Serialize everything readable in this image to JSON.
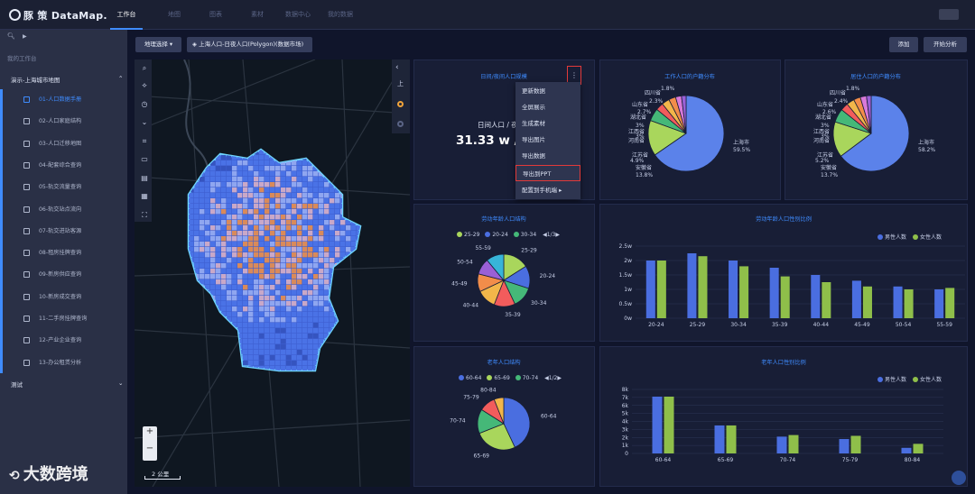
{
  "app": {
    "logo": "豚 策 DataMap."
  },
  "topnav": [
    {
      "label": "工作台",
      "active": true
    },
    {
      "label": "地图"
    },
    {
      "label": "图表"
    },
    {
      "label": "素材"
    },
    {
      "label": "数据中心"
    },
    {
      "label": "我的数据"
    }
  ],
  "sidebar": {
    "workspace_label": "我的工作台",
    "group1": "演示-上海城市地图",
    "items": [
      "01-人口数据手册",
      "02-人口家庭结构",
      "03-人口迁移地图",
      "04-配套综合查询",
      "05-轨交流量查询",
      "06-轨交站点流向",
      "07-轨交进站客源",
      "08-租房挂牌查询",
      "09-新房供应查询",
      "10-新房成交查询",
      "11-二手房挂牌查询",
      "12-产业企业查询",
      "13-办公租赁分析"
    ],
    "group2": "测试"
  },
  "toolbar": {
    "geo_select": "地理选择",
    "layer": "上海人口-日夜人口(Polygon)(数据市场)",
    "add": "添加",
    "analyze": "开始分析"
  },
  "map": {
    "scale": "2 公里",
    "zoom_in": "+",
    "zoom_out": "−",
    "side_label": "上"
  },
  "kpi": {
    "title": "日间/夜间人口规模",
    "label": "日间人口 / 夜",
    "value": "31.33 w / 3",
    "more": "⋮"
  },
  "menu": [
    "更新数据",
    "全屏展示",
    "生成素材",
    "导出图片",
    "导出数据",
    "导出到PPT",
    "配置到手机端 ▸"
  ],
  "charts": {
    "work": {
      "title": "工作人口的户籍分布",
      "labels": [
        "上海市",
        "59.5%",
        "安徽省",
        "13.8%",
        "江苏省",
        "4.9%",
        "河南省",
        "江西省",
        "湖北省",
        "山东省",
        "四川省",
        "1.8%",
        "2.3%",
        "2.7%",
        "3%",
        "3%"
      ]
    },
    "live": {
      "title": "居住人口的户籍分布",
      "labels": [
        "上海市",
        "58.2%",
        "安徽省",
        "13.7%",
        "江苏省",
        "5.2%",
        "河南省",
        "江西省",
        "湖北省",
        "山东省",
        "四川省",
        "1.8%",
        "2.4%",
        "2.6%",
        "3%",
        "3%"
      ]
    },
    "labor_age": {
      "title": "劳动年龄人口结构",
      "legend": [
        "25-29",
        "20-24",
        "30-34"
      ],
      "page": "1/3",
      "labels": [
        "25-29",
        "20-24",
        "30-34",
        "35-39",
        "40-44",
        "45-49",
        "50-54",
        "55-59"
      ]
    },
    "old_age": {
      "title": "老年人口结构",
      "legend": [
        "60-64",
        "65-69",
        "70-74"
      ],
      "page": "1/2",
      "labels": [
        "60-64",
        "65-69",
        "70-74",
        "75-79",
        "80-84"
      ]
    },
    "labor_gender": {
      "title": "劳动年龄人口性别比例",
      "legend": [
        "男性人数",
        "女性人数"
      ]
    },
    "old_gender": {
      "title": "老年人口性别比例",
      "legend": [
        "男性人数",
        "女性人数"
      ]
    }
  },
  "chart_data": [
    {
      "type": "bar",
      "title": "劳动年龄人口性别比例",
      "categories": [
        "20-24",
        "25-29",
        "30-34",
        "35-39",
        "40-44",
        "45-49",
        "50-54",
        "55-59"
      ],
      "series": [
        {
          "name": "男性人数",
          "values": [
            2.0,
            2.25,
            2.0,
            1.75,
            1.5,
            1.3,
            1.1,
            1.0
          ]
        },
        {
          "name": "女性人数",
          "values": [
            2.0,
            2.15,
            1.8,
            1.45,
            1.25,
            1.1,
            1.0,
            1.05
          ]
        }
      ],
      "yticks": [
        "2.5w",
        "2w",
        "1.5w",
        "1w",
        "0.5w",
        "0w"
      ],
      "ylim": [
        0,
        2.5
      ]
    },
    {
      "type": "bar",
      "title": "老年人口性别比例",
      "categories": [
        "60-64",
        "65-69",
        "70-74",
        "75-79",
        "80-84"
      ],
      "series": [
        {
          "name": "男性人数",
          "values": [
            7100,
            3500,
            2100,
            1800,
            700
          ]
        },
        {
          "name": "女性人数",
          "values": [
            7100,
            3500,
            2300,
            2200,
            1200
          ]
        }
      ],
      "yticks": [
        "8k",
        "7k",
        "6k",
        "5k",
        "4k",
        "3k",
        "2k",
        "1k",
        "0"
      ],
      "ylim": [
        0,
        8000
      ]
    },
    {
      "type": "pie",
      "title": "劳动年龄人口结构",
      "categories": [
        "25-29",
        "20-24",
        "30-34",
        "35-39",
        "40-44",
        "45-49",
        "50-54",
        "55-59"
      ],
      "values": [
        16,
        14,
        13,
        13,
        12,
        11,
        10,
        11
      ]
    },
    {
      "type": "pie",
      "title": "老年人口结构",
      "categories": [
        "60-64",
        "65-69",
        "70-74",
        "75-79",
        "80-84"
      ],
      "values": [
        43,
        26,
        15,
        10,
        6
      ]
    },
    {
      "type": "pie",
      "title": "工作人口的户籍分布",
      "categories": [
        "上海市",
        "安徽省",
        "江苏省",
        "河南省",
        "江西省",
        "湖北省",
        "山东省",
        "四川省"
      ],
      "values": [
        59.5,
        13.8,
        4.9,
        3,
        3,
        2.7,
        2.3,
        1.8
      ]
    },
    {
      "type": "pie",
      "title": "居住人口的户籍分布",
      "categories": [
        "上海市",
        "安徽省",
        "江苏省",
        "河南省",
        "江西省",
        "湖北省",
        "山东省",
        "四川省"
      ],
      "values": [
        58.2,
        13.7,
        5.2,
        3,
        3,
        2.6,
        2.4,
        1.8
      ]
    }
  ],
  "watermark": "大数跨境"
}
